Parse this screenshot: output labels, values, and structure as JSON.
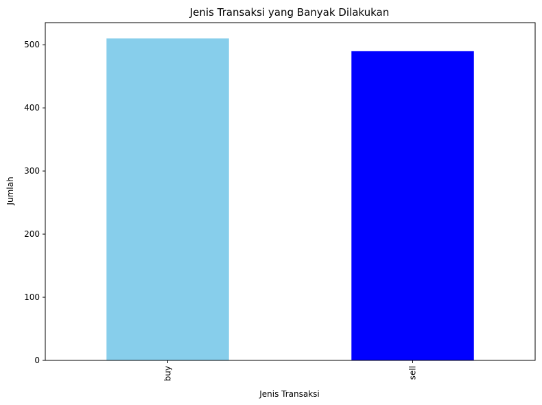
{
  "chart_data": {
    "type": "bar",
    "title": "Jenis Transaksi yang Banyak Dilakukan",
    "xlabel": "Jenis Transaksi",
    "ylabel": "Jumlah",
    "categories": [
      "buy",
      "sell"
    ],
    "values": [
      510,
      490
    ],
    "colors": [
      "#87CEEB",
      "#0000FF"
    ],
    "ylim": [
      0,
      535
    ],
    "yticks": [
      0,
      100,
      200,
      300,
      400,
      500
    ],
    "grid": false
  }
}
